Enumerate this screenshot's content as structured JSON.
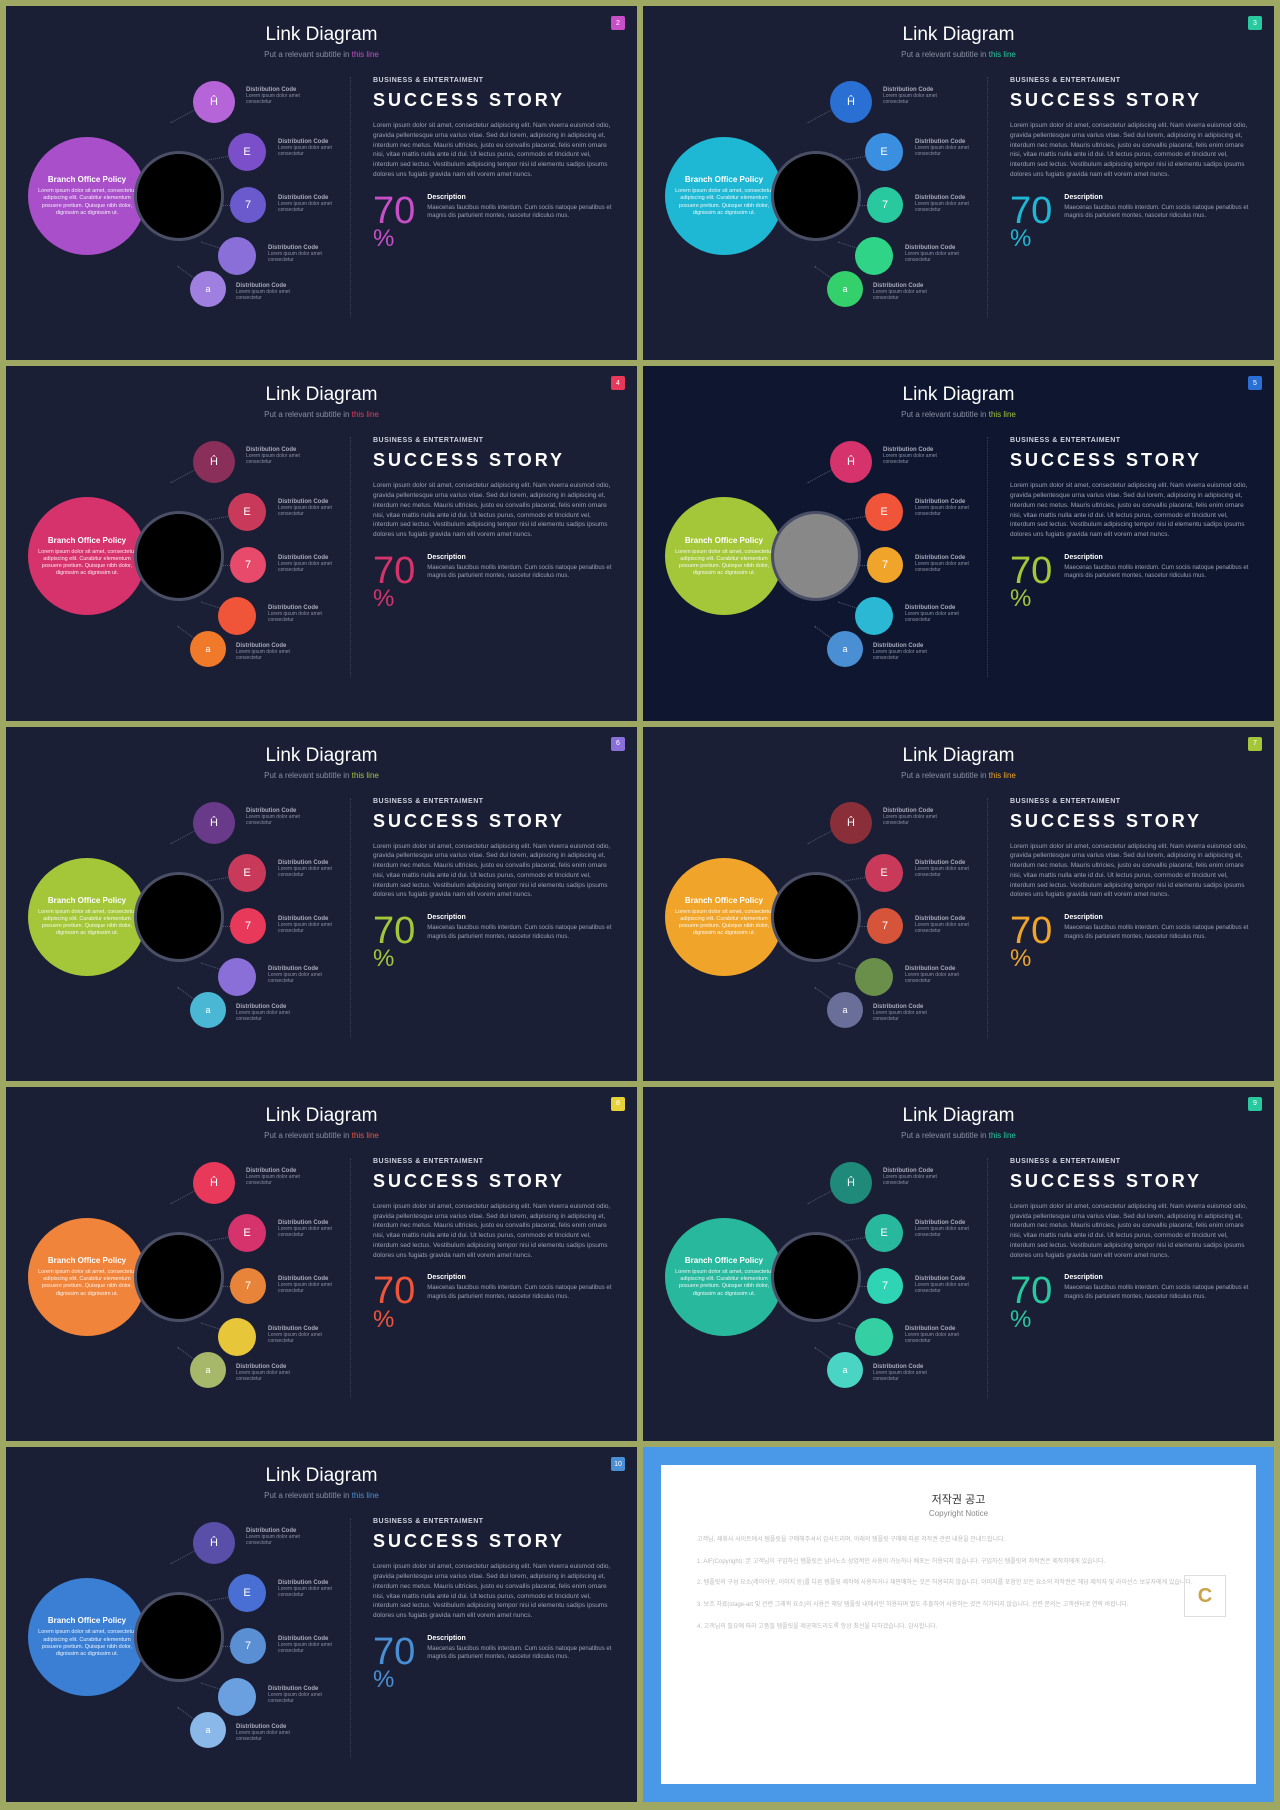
{
  "common": {
    "title": "Link Diagram",
    "subtitle_pre": "Put a relevant subtitle in ",
    "subtitle_link": "this line",
    "big_title": "Branch Office Policy",
    "big_desc": "Lorem ipsum dolor sit amet, consectetur adipiscing elit. Curabitur elementum posuere pretium. Quisque nibh dolor, dignissim ac dignissim ut.",
    "sats": [
      "Ĥ",
      "E",
      "7",
      "",
      "a"
    ],
    "dist_title": "Distribution Code",
    "dist_desc": "Lorem ipsum dolor amet consectetur",
    "category": "BUSINESS & ENTERTAIMENT",
    "story_title": "SUCCESS STORY",
    "story_body": "Lorem ipsum dolor sit amet, consectetur adipiscing elit. Nam viverra euismod odio, gravida pellentesque urna varius vitae. Sed dui lorem, adipiscing in adipiscing et, interdum nec metus. Mauris ultricies, justo eu convallis placerat, felis enim ornare nisi, vitae mattis nulla ante id dui. Ut lectus purus, commodo et tincidunt vel, interdum sed lectus. Vestibulum adipiscing tempor nisi id elementu sadips ipsums dolores uns fugiats gravida nam elit vorem amet nuncs.",
    "pct": "70",
    "pct_unit": "%",
    "desc_label": "Description",
    "desc_body": "Maecenas faucibus mollis interdum. Cum sociis natoque penatibus et magnis dis parturient montes, nascetur ridiculus mus."
  },
  "slides": [
    {
      "badge_num": "2",
      "badge_color": "#c94fc9",
      "bg": "#1a1f36",
      "center_fill": "#000000",
      "accent": "#c94fc9",
      "big": "#a84fc9",
      "sat_colors": [
        "#b565d8",
        "#7b4fc9",
        "#6a5acd",
        "#8a6fd8",
        "#9f7fe0"
      ],
      "pct_color": "#c94fc9"
    },
    {
      "badge_num": "3",
      "badge_color": "#28c99e",
      "bg": "#1a1f36",
      "center_fill": "#000000",
      "accent": "#28c99e",
      "big": "#1fb8d4",
      "sat_colors": [
        "#2a6fd4",
        "#3a8fe0",
        "#28c99e",
        "#2fd487",
        "#34d06b"
      ],
      "pct_color": "#1fb8d4"
    },
    {
      "badge_num": "4",
      "badge_color": "#e8395a",
      "bg": "#1a1f36",
      "center_fill": "#000000",
      "accent": "#e8395a",
      "big": "#d6336c",
      "sat_colors": [
        "#8a2f5a",
        "#c9395a",
        "#e84a6c",
        "#f0553a",
        "#f07a2a"
      ],
      "pct_color": "#d6336c"
    },
    {
      "badge_num": "5",
      "badge_color": "#2a6fd4",
      "bg": "#0f1730",
      "center_fill": "#888888",
      "accent": "#a4c639",
      "big": "#a4c639",
      "sat_colors": [
        "#d6336c",
        "#f0553a",
        "#f0a52a",
        "#2ab8d4",
        "#4a8fd4"
      ],
      "pct_color": "#a4c639"
    },
    {
      "badge_num": "6",
      "badge_color": "#8a6fd8",
      "bg": "#1a1f36",
      "center_fill": "#000000",
      "accent": "#a4c639",
      "big": "#a4c639",
      "sat_colors": [
        "#6a3a8a",
        "#c9395a",
        "#e8395a",
        "#8a6fd8",
        "#4ab8d4"
      ],
      "pct_color": "#a4c639"
    },
    {
      "badge_num": "7",
      "badge_color": "#a4c639",
      "bg": "#1a1f36",
      "center_fill": "#000000",
      "accent": "#f0a52a",
      "big": "#f0a52a",
      "sat_colors": [
        "#8a2f3a",
        "#c9395a",
        "#d6553a",
        "#6a8f4a",
        "#6a6f9a"
      ],
      "pct_color": "#f0a52a"
    },
    {
      "badge_num": "8",
      "badge_color": "#e8d23a",
      "bg": "#1a1f36",
      "center_fill": "#000000",
      "accent": "#f0553a",
      "big": "#f0843a",
      "sat_colors": [
        "#e8395a",
        "#d6336c",
        "#e8843a",
        "#e8c63a",
        "#a8b86a"
      ],
      "pct_color": "#f0553a"
    },
    {
      "badge_num": "9",
      "badge_color": "#28c99e",
      "bg": "#1a1f36",
      "center_fill": "#000000",
      "accent": "#28c99e",
      "big": "#28b89e",
      "sat_colors": [
        "#1f8a7a",
        "#28b89e",
        "#2fd4b4",
        "#34d0a4",
        "#4ad4c4"
      ],
      "pct_color": "#28c99e"
    },
    {
      "badge_num": "10",
      "badge_color": "#4a8fd4",
      "bg": "#1a1f36",
      "center_fill": "#000000",
      "accent": "#4a8fd4",
      "big": "#3a7fd4",
      "sat_colors": [
        "#5a4fa8",
        "#4a6fd4",
        "#5a8fd4",
        "#6a9fe0",
        "#8ab8e8"
      ],
      "pct_color": "#4a8fd4"
    }
  ],
  "notice": {
    "title": "저작권 공고",
    "subtitle": "Copyright Notice",
    "logo": "C",
    "paras": [
      "고객님, 제휴사 사이트에서 템플릿을 구매해주셔서 감사드리며, 아래의 템플릿 구매에 따른 저작권 관련 내용을 안내드립니다.",
      "1. AIF(Copyright): 본 고객님이 구입하신 템플릿은 남녀노소 상업적인 사용이 가능하나 배포는 허용되지 않습니다. 구입하신 템플릿의 저작권은 제작자에게 있습니다.",
      "2. 템플릿의 구성 요소(레이아웃, 이미지 등)를 다른 템플릿 제작에 사용하거나 재판매하는 것은 허용되지 않습니다. 이미지를 포함한 모든 요소의 저작권은 해당 제작자 및 라이선스 보유자에게 있습니다.",
      "3. 보조 자료(stage-art 및 관련 그래픽 요소)의 사용은 해당 템플릿 내에서만 허용되며 별도 추출하여 사용하는 것은 허가되지 않습니다. 관련 문의는 고객센터로 연락 바랍니다.",
      "4. 고객님의 필요에 따라 고품질 템플릿을 제공해드리도록 항상 최선을 다하겠습니다. 감사합니다."
    ]
  }
}
